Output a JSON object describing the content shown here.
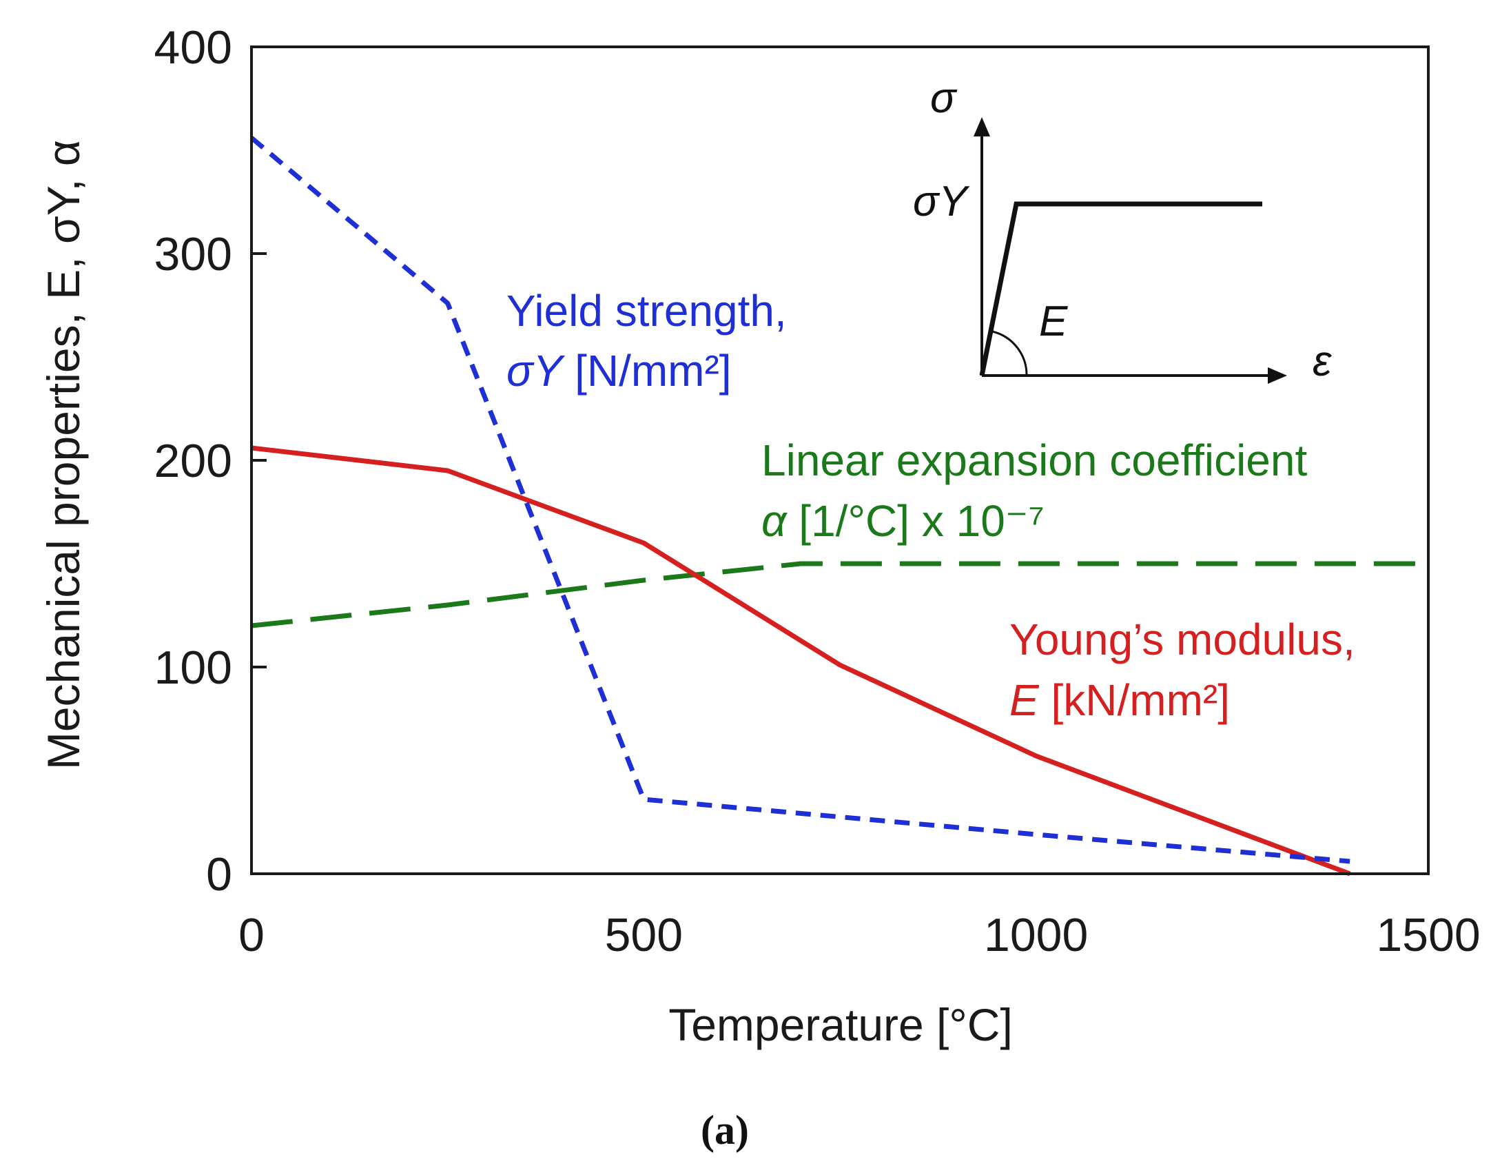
{
  "chart_data": {
    "type": "line",
    "xlabel": "Temperature [°C]",
    "ylabel": "Mechanical properties,  E, σY, α",
    "xlim": [
      0,
      1500
    ],
    "ylim": [
      0,
      400
    ],
    "x_ticks": [
      "0",
      "500",
      "1000",
      "1500"
    ],
    "y_ticks": [
      "0",
      "100",
      "200",
      "300",
      "400"
    ],
    "grid": false,
    "panel_label": "(a)",
    "series": [
      {
        "key": "yield",
        "label_line1": "Yield strength,",
        "label_line2_sym": "σY",
        "label_line2_unit": " [N/mm²]",
        "color": "#1f2fd6",
        "dash": "short",
        "x": [
          0,
          250,
          500,
          1000,
          1400
        ],
        "y": [
          356,
          276,
          36,
          19,
          6
        ]
      },
      {
        "key": "young",
        "label_line1": "Young’s modulus,",
        "label_line2_sym": "E",
        "label_line2_unit": " [kN/mm²]",
        "color": "#d61f1f",
        "dash": "solid",
        "x": [
          0,
          250,
          500,
          750,
          1000,
          1400
        ],
        "y": [
          206,
          195,
          160,
          101,
          57,
          0
        ]
      },
      {
        "key": "alpha",
        "label_line1": "Linear expansion coefficient",
        "label_line2_sym": "α",
        "label_line2_unit": " [1/°C] x 10⁻⁷",
        "color": "#1a7a1a",
        "dash": "long",
        "x": [
          0,
          250,
          500,
          700,
          1500
        ],
        "y": [
          120,
          130,
          142,
          150,
          150
        ]
      }
    ],
    "inset": {
      "y_axis_label": "σ",
      "x_axis_label": "ε",
      "yield_label": "σY",
      "modulus_label": "E"
    }
  }
}
